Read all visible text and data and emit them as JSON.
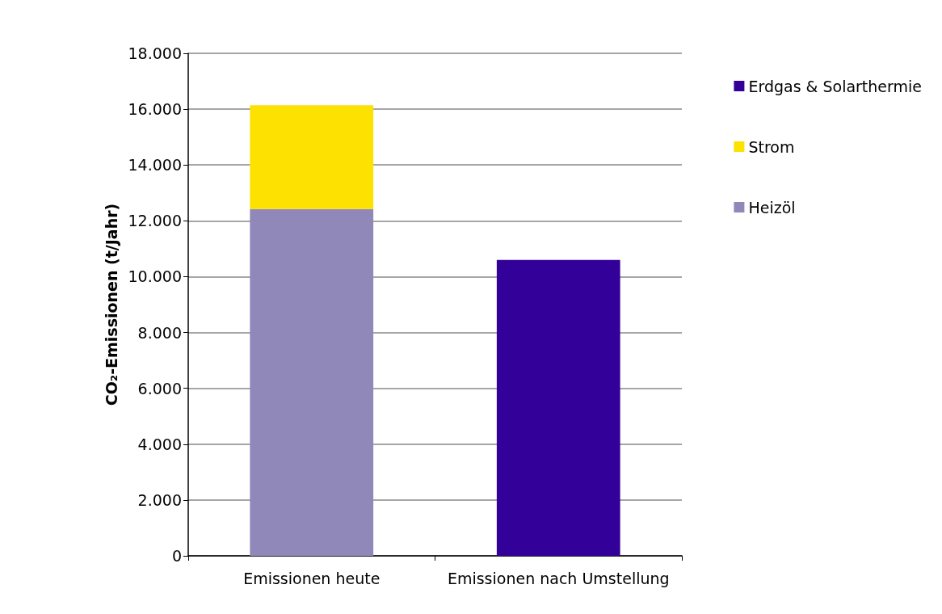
{
  "chart_data": {
    "type": "bar",
    "stacked": true,
    "ylabel": "CO₂-Emissionen (t/Jahr)",
    "categories": [
      "Emissionen heute",
      "Emissionen nach Umstellung"
    ],
    "series": [
      {
        "name": "Heizöl",
        "color": "#8f88b9",
        "values": [
          12420,
          null
        ]
      },
      {
        "name": "Strom",
        "color": "#fde100",
        "values": [
          3720,
          null
        ]
      },
      {
        "name": "Erdgas & Solarthermie",
        "color": "#330099",
        "values": [
          null,
          10600
        ]
      }
    ],
    "ylim": [
      0,
      18000
    ],
    "yticks": [
      {
        "value": 0,
        "label": "0"
      },
      {
        "value": 2000,
        "label": "2.000"
      },
      {
        "value": 4000,
        "label": "4.000"
      },
      {
        "value": 6000,
        "label": "6.000"
      },
      {
        "value": 8000,
        "label": "8.000"
      },
      {
        "value": 10000,
        "label": "10.000"
      },
      {
        "value": 12000,
        "label": "12.000"
      },
      {
        "value": 14000,
        "label": "14.000"
      },
      {
        "value": 16000,
        "label": "16.000"
      },
      {
        "value": 18000,
        "label": "18.000"
      }
    ],
    "grid": "y",
    "legend": "right"
  }
}
